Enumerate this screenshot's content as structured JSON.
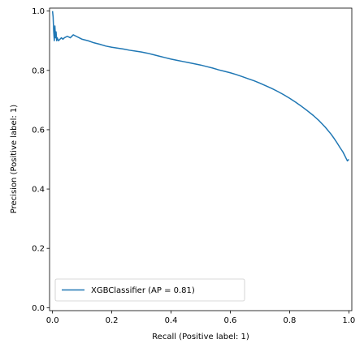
{
  "chart_data": {
    "type": "line",
    "xlabel": "Recall (Positive label: 1)",
    "ylabel": "Precision (Positive label: 1)",
    "xlim": [
      -0.01,
      1.01
    ],
    "ylim": [
      -0.01,
      1.01
    ],
    "x_ticks": [
      "0.0",
      "0.2",
      "0.4",
      "0.6",
      "0.8",
      "1.0"
    ],
    "y_ticks": [
      "0.0",
      "0.2",
      "0.4",
      "0.6",
      "0.8",
      "1.0"
    ],
    "grid": false,
    "legend_position": "lower-left",
    "series": [
      {
        "name": "XGBClassifier (AP = 0.81)",
        "color": "#1f77b4",
        "x": [
          0.0,
          0.002,
          0.004,
          0.006,
          0.008,
          0.01,
          0.012,
          0.014,
          0.016,
          0.02,
          0.025,
          0.03,
          0.035,
          0.04,
          0.05,
          0.06,
          0.07,
          0.08,
          0.09,
          0.1,
          0.12,
          0.14,
          0.16,
          0.18,
          0.2,
          0.22,
          0.24,
          0.26,
          0.28,
          0.3,
          0.32,
          0.34,
          0.36,
          0.38,
          0.4,
          0.42,
          0.44,
          0.46,
          0.48,
          0.5,
          0.52,
          0.54,
          0.56,
          0.58,
          0.6,
          0.62,
          0.64,
          0.66,
          0.68,
          0.7,
          0.72,
          0.74,
          0.76,
          0.78,
          0.8,
          0.82,
          0.84,
          0.86,
          0.88,
          0.9,
          0.92,
          0.94,
          0.95,
          0.96,
          0.97,
          0.98,
          0.985,
          0.99,
          0.995,
          1.0
        ],
        "y": [
          1.0,
          0.98,
          0.93,
          0.9,
          0.95,
          0.91,
          0.93,
          0.9,
          0.91,
          0.9,
          0.905,
          0.91,
          0.905,
          0.91,
          0.915,
          0.91,
          0.92,
          0.915,
          0.91,
          0.905,
          0.9,
          0.893,
          0.888,
          0.882,
          0.878,
          0.875,
          0.872,
          0.868,
          0.865,
          0.862,
          0.858,
          0.853,
          0.848,
          0.843,
          0.838,
          0.834,
          0.83,
          0.826,
          0.822,
          0.818,
          0.813,
          0.808,
          0.802,
          0.797,
          0.792,
          0.786,
          0.779,
          0.772,
          0.765,
          0.757,
          0.748,
          0.739,
          0.729,
          0.718,
          0.706,
          0.693,
          0.679,
          0.664,
          0.648,
          0.63,
          0.609,
          0.585,
          0.571,
          0.556,
          0.54,
          0.525,
          0.515,
          0.505,
          0.495,
          0.5
        ]
      }
    ]
  }
}
